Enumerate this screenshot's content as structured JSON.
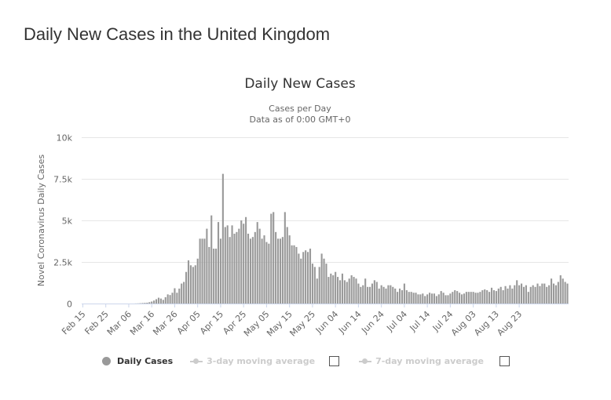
{
  "page": {
    "title": "Daily New Cases in the United Kingdom"
  },
  "legend": {
    "daily_cases": "Daily Cases",
    "three_day": "3-day moving average",
    "seven_day": "7-day moving average"
  },
  "colors": {
    "bar": "#999999",
    "grid": "#e6e6e6",
    "axis_text": "#666666",
    "title_text": "#333333",
    "legend_inactive": "#cccccc"
  },
  "chart_data": {
    "type": "bar",
    "title": "Daily New Cases",
    "subtitle_lines": [
      "Cases per Day",
      "Data as of 0:00 GMT+0"
    ],
    "xlabel": "",
    "ylabel": "Novel Coronavirus Daily Cases",
    "ylim": [
      0,
      10000
    ],
    "y_ticks": [
      0,
      2500,
      5000,
      7500,
      10000
    ],
    "y_tick_labels": [
      "0",
      "2.5k",
      "5k",
      "7.5k",
      "10k"
    ],
    "x_tick_labels": [
      "Feb 15",
      "Feb 25",
      "Mar 06",
      "Mar 16",
      "Mar 26",
      "Apr 05",
      "Apr 15",
      "Apr 25",
      "May 05",
      "May 15",
      "May 25",
      "Jun 04",
      "Jun 14",
      "Jun 24",
      "Jul 04",
      "Jul 14",
      "Jul 24",
      "Aug 03",
      "Aug 13",
      "Aug 23"
    ],
    "x_tick_step_days": 10,
    "grid": true,
    "legend_position": "bottom",
    "series": [
      {
        "name": "Daily Cases",
        "start_date": "Feb 15",
        "values": [
          0,
          0,
          0,
          0,
          0,
          0,
          0,
          0,
          0,
          0,
          0,
          0,
          0,
          0,
          0,
          0,
          0,
          0,
          0,
          0,
          0,
          0,
          0,
          5,
          10,
          20,
          30,
          40,
          50,
          80,
          120,
          180,
          260,
          350,
          300,
          220,
          380,
          550,
          510,
          650,
          920,
          650,
          900,
          1200,
          1300,
          1900,
          2600,
          2300,
          2200,
          2300,
          2700,
          3900,
          3900,
          3900,
          4500,
          3400,
          5300,
          3300,
          3300,
          4900,
          3900,
          7800,
          4600,
          4700,
          4000,
          4700,
          4200,
          4300,
          4500,
          5000,
          4800,
          5200,
          4200,
          3900,
          4000,
          4300,
          4900,
          4500,
          3900,
          4100,
          3700,
          3600,
          5400,
          5500,
          4300,
          3900,
          3900,
          4000,
          5500,
          4600,
          4100,
          3500,
          3500,
          3400,
          3000,
          2700,
          3100,
          3200,
          3100,
          3300,
          2400,
          2200,
          1500,
          2200,
          3000,
          2700,
          2400,
          1600,
          1800,
          1700,
          1900,
          1600,
          1400,
          1800,
          1400,
          1300,
          1500,
          1700,
          1600,
          1500,
          1200,
          1000,
          1100,
          1500,
          1000,
          1000,
          1200,
          1400,
          1300,
          900,
          1100,
          1000,
          900,
          1100,
          1100,
          1000,
          900,
          700,
          900,
          800,
          1200,
          800,
          700,
          700,
          650,
          650,
          550,
          550,
          600,
          450,
          550,
          650,
          600,
          600,
          450,
          550,
          750,
          650,
          500,
          500,
          600,
          700,
          800,
          750,
          650,
          550,
          600,
          700,
          700,
          700,
          700,
          650,
          650,
          700,
          800,
          850,
          800,
          700,
          950,
          800,
          750,
          900,
          1000,
          800,
          1050,
          900,
          1100,
          900,
          1100,
          1400,
          1100,
          1200,
          1000,
          1100,
          700,
          1000,
          1100,
          1000,
          1200,
          1050,
          1200,
          1200,
          1000,
          1100,
          1500,
          1200,
          1100,
          1300,
          1700,
          1500,
          1300,
          1200
        ]
      }
    ]
  }
}
